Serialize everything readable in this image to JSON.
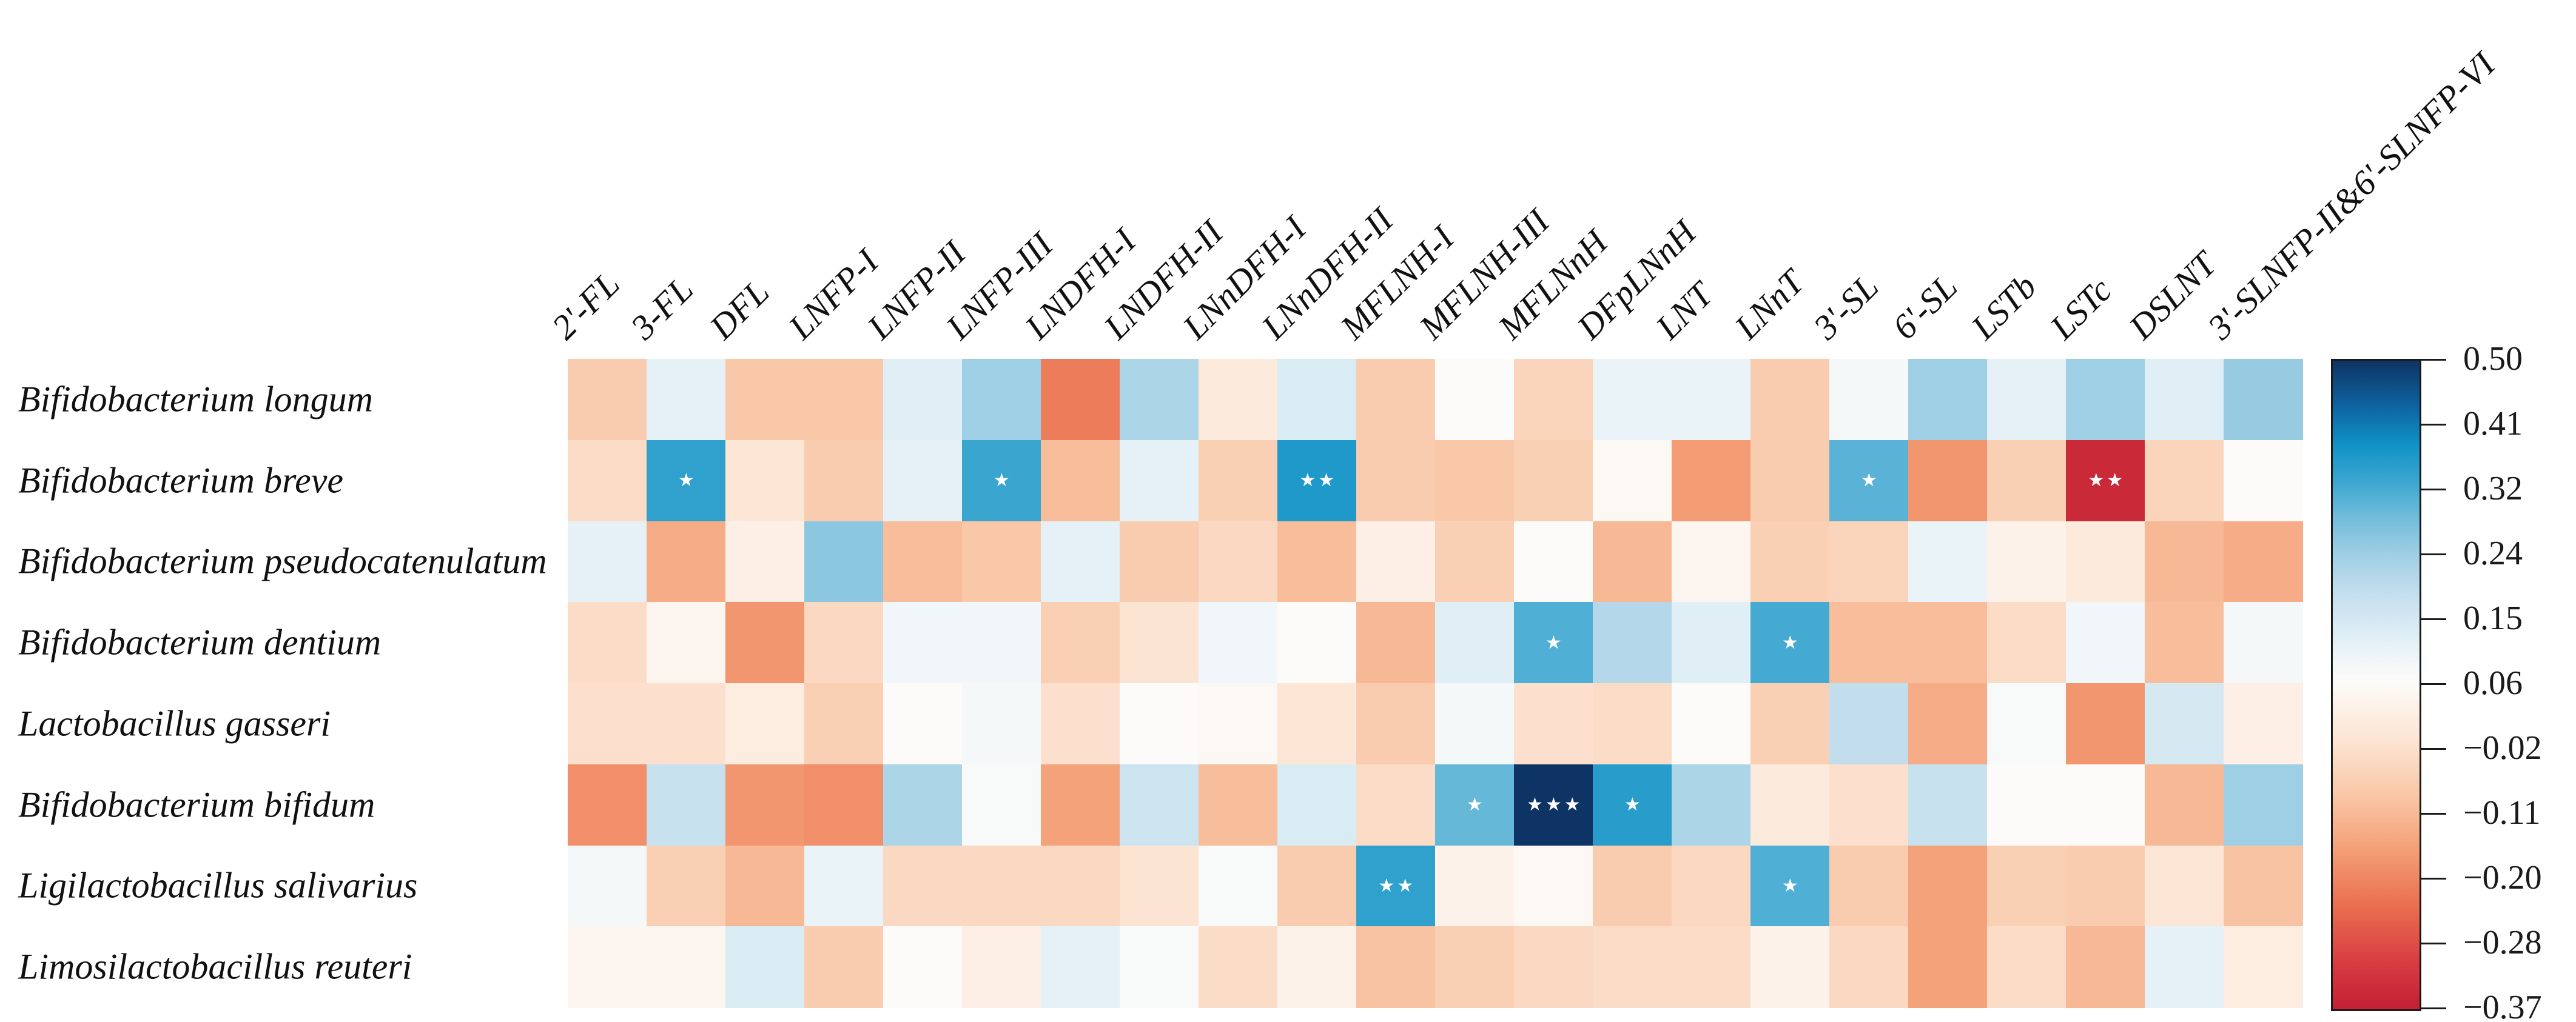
{
  "chart_data": {
    "type": "heatmap",
    "title": "",
    "legend_position": "right-colorbar",
    "grid": false,
    "rows": [
      "Bifidobacterium longum",
      "Bifidobacterium breve",
      "Bifidobacterium pseudocatenulatum",
      "Bifidobacterium dentium",
      "Lactobacillus gasseri",
      "Bifidobacterium bifidum",
      "Ligilactobacillus salivarius",
      "Limosilactobacillus reuteri"
    ],
    "columns": [
      "2'-FL",
      "3-FL",
      "DFL",
      "LNFP-I",
      "LNFP-II",
      "LNFP-III",
      "LNDFH-I",
      "LNDFH-II",
      "LNnDFH-I",
      "LNnDFH-II",
      "MFLNH-I",
      "MFLNH-III",
      "MFLNnH",
      "DFpLNnH",
      "LNT",
      "LNnT",
      "3'-SL",
      "6'-SL",
      "LSTb",
      "LSTc",
      "DSLNT",
      "3'-SLNFP-II&6'-SLNFP-VI"
    ],
    "values": [
      [
        -0.07,
        0.12,
        -0.08,
        -0.08,
        0.13,
        0.24,
        -0.21,
        0.22,
        0.01,
        0.14,
        -0.07,
        0.07,
        -0.05,
        0.11,
        0.11,
        -0.07,
        0.09,
        0.24,
        0.12,
        0.24,
        0.13,
        0.25
      ],
      [
        -0.03,
        0.35,
        0.0,
        -0.07,
        0.12,
        0.34,
        -0.1,
        0.12,
        -0.06,
        0.37,
        -0.07,
        -0.08,
        -0.06,
        0.06,
        -0.16,
        -0.07,
        0.31,
        -0.17,
        -0.06,
        -0.35,
        -0.05,
        0.07
      ],
      [
        0.12,
        -0.13,
        0.03,
        0.26,
        -0.1,
        -0.08,
        0.12,
        -0.07,
        -0.04,
        -0.1,
        0.03,
        -0.06,
        0.07,
        -0.11,
        0.05,
        -0.06,
        -0.05,
        0.11,
        0.04,
        0.01,
        -0.11,
        -0.13
      ],
      [
        -0.03,
        0.05,
        -0.17,
        -0.04,
        0.1,
        0.1,
        -0.06,
        -0.01,
        0.1,
        0.07,
        -0.11,
        0.13,
        0.32,
        0.21,
        0.13,
        0.33,
        -0.1,
        -0.1,
        -0.03,
        0.1,
        -0.1,
        0.09
      ],
      [
        -0.02,
        -0.02,
        0.02,
        -0.06,
        0.07,
        0.09,
        -0.02,
        0.07,
        0.06,
        0.0,
        -0.07,
        0.09,
        -0.02,
        -0.03,
        0.07,
        -0.06,
        0.19,
        -0.13,
        0.08,
        -0.17,
        0.15,
        0.03
      ],
      [
        -0.18,
        0.18,
        -0.17,
        -0.18,
        0.22,
        0.08,
        -0.15,
        0.17,
        -0.1,
        0.14,
        -0.03,
        0.3,
        0.5,
        0.36,
        0.22,
        0.01,
        -0.02,
        0.18,
        0.07,
        0.07,
        -0.11,
        0.24
      ],
      [
        0.09,
        -0.06,
        -0.11,
        0.11,
        -0.04,
        -0.04,
        -0.04,
        -0.01,
        0.08,
        -0.07,
        0.35,
        0.04,
        0.06,
        -0.07,
        -0.04,
        0.32,
        -0.07,
        -0.15,
        -0.06,
        -0.07,
        0.0,
        -0.09
      ],
      [
        0.05,
        0.05,
        0.14,
        -0.07,
        0.07,
        0.03,
        0.12,
        0.08,
        -0.03,
        0.04,
        -0.09,
        -0.06,
        -0.04,
        -0.03,
        -0.03,
        0.04,
        -0.04,
        -0.15,
        -0.03,
        -0.11,
        0.12,
        0.02
      ]
    ],
    "significance": [
      {
        "row": 1,
        "col": 1,
        "label": "★"
      },
      {
        "row": 1,
        "col": 5,
        "label": "★"
      },
      {
        "row": 1,
        "col": 9,
        "label": "★★"
      },
      {
        "row": 1,
        "col": 16,
        "label": "★"
      },
      {
        "row": 1,
        "col": 19,
        "label": "★★"
      },
      {
        "row": 3,
        "col": 12,
        "label": "★"
      },
      {
        "row": 3,
        "col": 15,
        "label": "★"
      },
      {
        "row": 5,
        "col": 11,
        "label": "★"
      },
      {
        "row": 5,
        "col": 12,
        "label": "★★★"
      },
      {
        "row": 5,
        "col": 13,
        "label": "★"
      },
      {
        "row": 6,
        "col": 10,
        "label": "★★"
      },
      {
        "row": 6,
        "col": 15,
        "label": "★"
      }
    ],
    "colorbar": {
      "min": -0.37,
      "max": 0.5,
      "tick_labels": [
        "0.50",
        "0.41",
        "0.32",
        "0.24",
        "0.15",
        "0.06",
        "−0.02",
        "−0.11",
        "−0.20",
        "−0.28",
        "−0.37"
      ]
    },
    "palette": {
      "description": "diverging red-white-blue, t=0 at min value, t=1 at max value",
      "stops": [
        {
          "t": 0.0,
          "color": "#c32033"
        },
        {
          "t": 0.07,
          "color": "#d83b42"
        },
        {
          "t": 0.16,
          "color": "#ea6f4f"
        },
        {
          "t": 0.25,
          "color": "#f4a178"
        },
        {
          "t": 0.33,
          "color": "#f9c7a7"
        },
        {
          "t": 0.41,
          "color": "#fce3d1"
        },
        {
          "t": 0.47,
          "color": "#fdf2e9"
        },
        {
          "t": 0.505,
          "color": "#fcfbf9"
        },
        {
          "t": 0.54,
          "color": "#f0f6f9"
        },
        {
          "t": 0.58,
          "color": "#ddedf4"
        },
        {
          "t": 0.64,
          "color": "#c4dfee"
        },
        {
          "t": 0.7,
          "color": "#a0cfe4"
        },
        {
          "t": 0.76,
          "color": "#6fbcda"
        },
        {
          "t": 0.82,
          "color": "#36a4cf"
        },
        {
          "t": 0.87,
          "color": "#1192c5"
        },
        {
          "t": 0.93,
          "color": "#0e63a0"
        },
        {
          "t": 1.0,
          "color": "#0d3464"
        }
      ]
    }
  }
}
